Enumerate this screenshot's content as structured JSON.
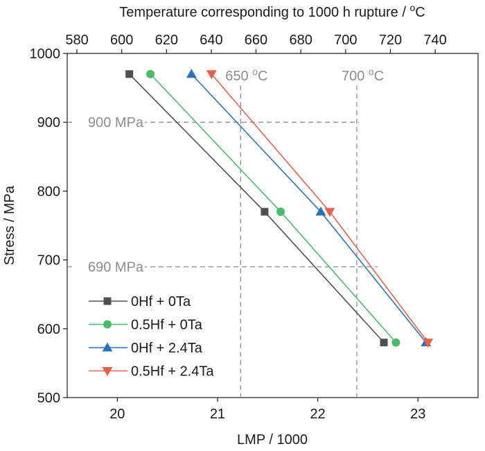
{
  "chart_data": {
    "type": "line",
    "xlabel": "LMP / 1000",
    "ylabel": "Stress / MPa",
    "top_axis_label": "Temperature corresponding to 1000 h rupture / °C",
    "xlim": [
      19.5,
      23.6
    ],
    "ylim": [
      500,
      1000
    ],
    "x_ticks": [
      20,
      21,
      22,
      23
    ],
    "y_ticks": [
      500,
      600,
      700,
      800,
      900,
      1000
    ],
    "top_ticks": [
      {
        "label": "580",
        "lmp": 19.597
      },
      {
        "label": "600",
        "lmp": 20.044
      },
      {
        "label": "620",
        "lmp": 20.491
      },
      {
        "label": "640",
        "lmp": 20.938
      },
      {
        "label": "660",
        "lmp": 21.384
      },
      {
        "label": "680",
        "lmp": 21.831
      },
      {
        "label": "700",
        "lmp": 22.278
      },
      {
        "label": "720",
        "lmp": 22.725
      },
      {
        "label": "740",
        "lmp": 23.172
      }
    ],
    "reference_lines": {
      "horizontal": [
        {
          "label": "900 MPa",
          "y": 900
        },
        {
          "label": "690 MPa",
          "y": 690
        }
      ],
      "vertical": [
        {
          "label": "650 °C",
          "x": 21.23
        },
        {
          "label": "700 °C",
          "x": 22.39
        }
      ]
    },
    "grid": false,
    "legend_position": "bottom-left",
    "series": [
      {
        "name": "0Hf + 0Ta",
        "color": "#505050",
        "marker": "square",
        "points": [
          {
            "x": 20.12,
            "y": 970
          },
          {
            "x": 21.47,
            "y": 770
          },
          {
            "x": 22.66,
            "y": 580
          }
        ]
      },
      {
        "name": "0.5Hf + 0Ta",
        "color": "#4cba6b",
        "marker": "circle",
        "points": [
          {
            "x": 20.33,
            "y": 970
          },
          {
            "x": 21.63,
            "y": 770
          },
          {
            "x": 22.78,
            "y": 580
          }
        ]
      },
      {
        "name": "0Hf + 2.4Ta",
        "color": "#2b73b8",
        "marker": "triangle-up",
        "points": [
          {
            "x": 20.74,
            "y": 970
          },
          {
            "x": 22.03,
            "y": 770
          },
          {
            "x": 23.08,
            "y": 580
          }
        ]
      },
      {
        "name": "0.5Hf + 2.4Ta",
        "color": "#e8604c",
        "marker": "triangle-down",
        "points": [
          {
            "x": 20.94,
            "y": 970
          },
          {
            "x": 22.12,
            "y": 770
          },
          {
            "x": 23.1,
            "y": 580
          }
        ]
      }
    ]
  }
}
